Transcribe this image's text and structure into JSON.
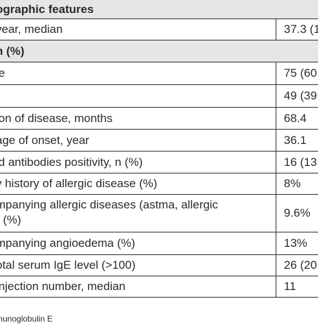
{
  "table": {
    "section_demographic": "ographic features",
    "rows": [
      {
        "label": "year, median",
        "value": "37.3 (1"
      },
      {
        "label": "n (%)",
        "value": "",
        "section": true
      },
      {
        "label": "le",
        "value": "75 (60"
      },
      {
        "label": "",
        "value": "49 (39"
      },
      {
        "label": "ion of disease, months",
        "value": "68.4"
      },
      {
        "label": "age of onset, year",
        "value": "36.1"
      },
      {
        "label": "id antibodies positivity, n (%)",
        "value": "16 (13"
      },
      {
        "label": "v history of allergic disease (%)",
        "value": "8%"
      },
      {
        "label": "mpanying allergic diseases (astma, allergic\n) (%)",
        "value": "9.6%"
      },
      {
        "label": "mpanying angioedema (%)",
        "value": "13%"
      },
      {
        "label": "otal serum IgE level (>100)",
        "value": "26 (20"
      },
      {
        "label": "injection number, median",
        "value": "11"
      }
    ]
  },
  "footnote": "munoglobulin E"
}
